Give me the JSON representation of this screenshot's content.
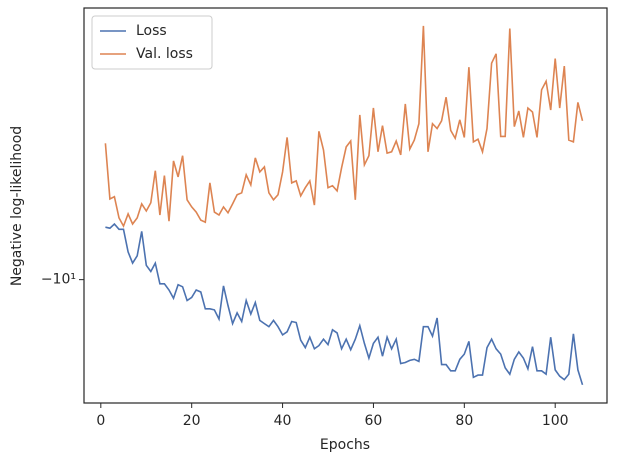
{
  "chart_data": {
    "type": "line",
    "xlabel": "Epochs",
    "ylabel": "Negative log-likelihood",
    "yscale": "symlog",
    "legend": "upper left",
    "x": [
      1,
      2,
      3,
      4,
      5,
      6,
      7,
      8,
      9,
      10,
      11,
      12,
      13,
      14,
      15,
      16,
      17,
      18,
      19,
      20,
      21,
      22,
      23,
      24,
      25,
      26,
      27,
      28,
      29,
      30,
      31,
      32,
      33,
      34,
      35,
      36,
      37,
      38,
      39,
      40,
      41,
      42,
      43,
      44,
      45,
      46,
      47,
      48,
      49,
      50,
      51,
      52,
      53,
      54,
      55,
      56,
      57,
      58,
      59,
      60,
      61,
      62,
      63,
      64,
      65,
      66,
      67,
      68,
      69,
      70,
      71,
      72,
      73,
      74,
      75,
      76,
      77,
      78,
      79,
      80,
      81,
      82,
      83,
      84,
      85,
      86,
      87,
      88,
      89,
      90,
      91,
      92,
      93,
      94,
      95,
      96,
      97,
      98,
      99,
      100,
      101,
      102,
      103,
      104,
      105,
      106
    ],
    "series": [
      {
        "name": "Loss",
        "color": "#4c72b0",
        "values": [
          -8.38,
          -8.41,
          -8.29,
          -8.44,
          -8.44,
          -9.11,
          -9.46,
          -9.23,
          -8.5,
          -9.53,
          -9.73,
          -9.46,
          -10.14,
          -10.14,
          -10.35,
          -10.64,
          -10.17,
          -10.24,
          -10.72,
          -10.61,
          -10.35,
          -10.42,
          -11.02,
          -11.02,
          -11.06,
          -11.4,
          -10.21,
          -10.9,
          -11.57,
          -11.17,
          -11.49,
          -10.72,
          -11.21,
          -10.79,
          -11.45,
          -11.57,
          -11.69,
          -11.45,
          -11.69,
          -12.01,
          -11.89,
          -11.49,
          -11.53,
          -12.22,
          -12.52,
          -12.1,
          -12.57,
          -12.44,
          -12.18,
          -12.4,
          -11.81,
          -11.93,
          -12.57,
          -12.18,
          -12.61,
          -12.18,
          -11.65,
          -12.35,
          -12.96,
          -12.35,
          -12.1,
          -12.88,
          -12.1,
          -12.57,
          -12.18,
          -13.19,
          -13.15,
          -13.06,
          -13.01,
          -13.1,
          -11.69,
          -11.69,
          -12.06,
          -11.36,
          -13.24,
          -13.24,
          -13.51,
          -13.51,
          -13.01,
          -12.79,
          -12.27,
          -13.8,
          -13.7,
          -13.7,
          -12.52,
          -12.18,
          -12.57,
          -12.79,
          -13.38,
          -13.66,
          -13.01,
          -12.7,
          -12.96,
          -13.42,
          -12.48,
          -13.51,
          -13.51,
          -13.66,
          -12.1,
          -13.47,
          -13.75,
          -13.9,
          -13.66,
          -11.97,
          -13.47,
          -14.14
        ]
      },
      {
        "name": "Val. loss",
        "color": "#dd8452",
        "values": [
          -6.27,
          -7.61,
          -7.55,
          -8.12,
          -8.35,
          -8.01,
          -8.29,
          -8.12,
          -7.74,
          -7.93,
          -7.71,
          -6.9,
          -8.04,
          -7.02,
          -8.21,
          -6.67,
          -7.05,
          -6.55,
          -7.63,
          -7.82,
          -7.96,
          -8.18,
          -8.24,
          -7.2,
          -7.96,
          -8.04,
          -7.82,
          -7.98,
          -7.74,
          -7.5,
          -7.45,
          -7.0,
          -7.25,
          -6.6,
          -6.93,
          -6.81,
          -7.45,
          -7.63,
          -7.5,
          -6.93,
          -6.14,
          -7.2,
          -7.15,
          -7.53,
          -7.32,
          -7.15,
          -7.77,
          -6.01,
          -6.42,
          -7.32,
          -7.27,
          -7.4,
          -6.83,
          -6.35,
          -6.22,
          -7.63,
          -5.67,
          -6.76,
          -6.55,
          -5.53,
          -6.46,
          -5.89,
          -6.49,
          -6.46,
          -6.22,
          -6.53,
          -5.45,
          -6.4,
          -6.2,
          -5.85,
          -4.09,
          -6.46,
          -5.85,
          -5.95,
          -5.79,
          -5.32,
          -5.99,
          -6.16,
          -5.77,
          -6.14,
          -4.77,
          -6.24,
          -6.18,
          -6.46,
          -5.95,
          -4.7,
          -4.54,
          -6.12,
          -6.12,
          -4.13,
          -5.91,
          -5.59,
          -6.14,
          -5.53,
          -5.61,
          -6.14,
          -5.18,
          -5.02,
          -5.57,
          -4.62,
          -5.53,
          -4.75,
          -6.2,
          -6.24,
          -5.42,
          -5.79
        ]
      }
    ],
    "xlim": [
      -3.7,
      111.4
    ],
    "xticks": [
      0,
      20,
      40,
      60,
      80,
      100
    ],
    "ylim": [
      -15,
      -3.82
    ],
    "yticks": [
      {
        "value": -10,
        "label": "−10¹"
      }
    ]
  }
}
